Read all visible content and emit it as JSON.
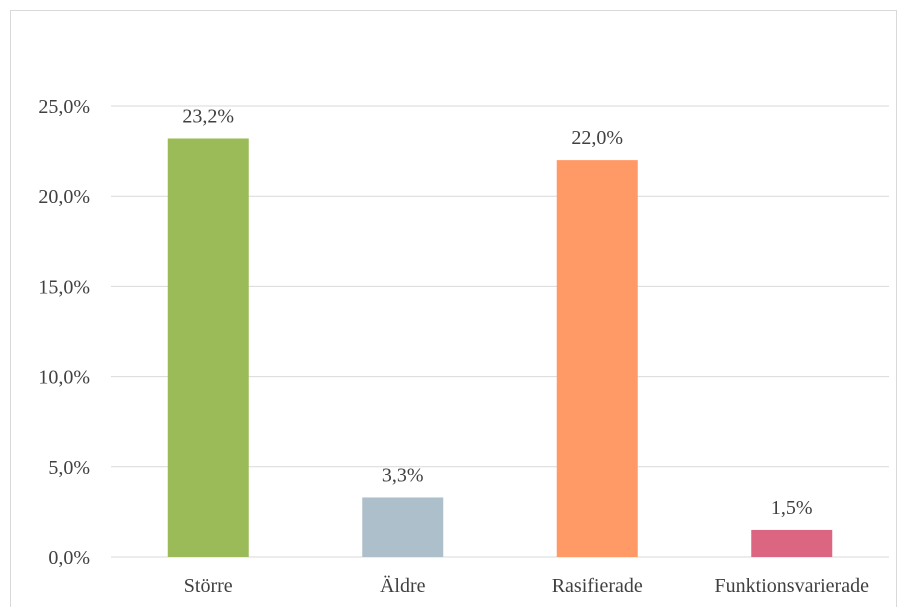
{
  "chart_data": {
    "type": "bar",
    "title": "",
    "xlabel": "",
    "ylabel": "",
    "categories": [
      "Större",
      "Äldre",
      "Rasifierade",
      "Funktionsvarierade"
    ],
    "values": [
      23.2,
      3.3,
      22.0,
      1.5
    ],
    "value_labels": [
      "23,2%",
      "3,3%",
      "22,0%",
      "1,5%"
    ],
    "ylim": [
      0,
      25
    ],
    "yticks": [
      0,
      5,
      10,
      15,
      20,
      25
    ],
    "ytick_labels": [
      "0,0%",
      "5,0%",
      "10,0%",
      "15,0%",
      "20,0%",
      "25,0%"
    ],
    "grid": true,
    "legend": "none",
    "colors": [
      "#9bbb59",
      "#adbfcb",
      "#ff9966",
      "#dc6681"
    ],
    "gridline_color": "#d9d9d9"
  }
}
